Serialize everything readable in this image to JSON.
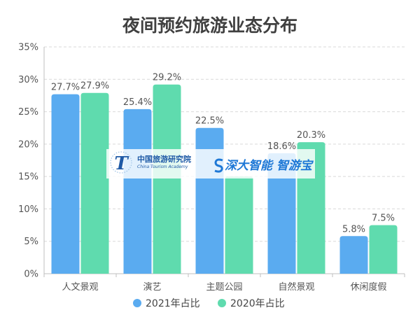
{
  "chart_data": {
    "type": "bar",
    "title": "夜间预约旅游业态分布",
    "xlabel": "",
    "ylabel": "",
    "categories": [
      "人文景观",
      "演艺",
      "主题公园",
      "自然景观",
      "休闲度假"
    ],
    "series": [
      {
        "name": "2021年占比",
        "color": "#5aabf0",
        "values": [
          27.7,
          25.4,
          22.5,
          18.6,
          5.8
        ],
        "labels": [
          "27.7%",
          "25.4%",
          "22.5%",
          "18.6%",
          "5.8%"
        ]
      },
      {
        "name": "2020年占比",
        "color": "#5fdbae",
        "values": [
          27.9,
          29.2,
          15.0,
          20.3,
          7.5
        ],
        "labels": [
          "27.9%",
          "29.2%",
          null,
          "20.3%",
          "7.5%"
        ]
      }
    ],
    "ylim": [
      0,
      35
    ],
    "yticks": [
      0,
      5,
      10,
      15,
      20,
      25,
      30,
      35
    ],
    "ytick_labels": [
      "0%",
      "5%",
      "10%",
      "15%",
      "20%",
      "25%",
      "30%",
      "35%"
    ],
    "grid": true,
    "legend_position": "bottom-center"
  },
  "watermark": {
    "logo_text_cn": "中国旅游研究院",
    "logo_text_en": "China Tourism Academy",
    "brand_1": "深大智能",
    "brand_2": "智游宝"
  }
}
